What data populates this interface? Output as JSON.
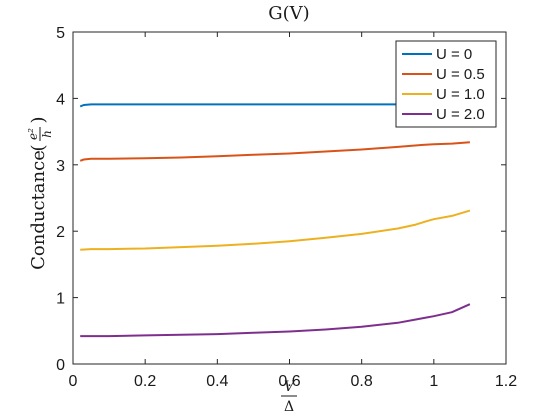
{
  "chart_data": {
    "type": "line",
    "title": "G(V)",
    "xlabel": {
      "numerator": "V",
      "denominator": "Δ"
    },
    "ylabel": {
      "text": "Conductance",
      "numerator": "e²",
      "denominator": "h"
    },
    "xlim": [
      0,
      1.2
    ],
    "ylim": [
      0,
      5
    ],
    "xticks": [
      0,
      0.2,
      0.4,
      0.6,
      0.8,
      1,
      1.2
    ],
    "xtick_labels": [
      "0",
      "0.2",
      "0.4",
      "0.6",
      "0.8",
      "1",
      "1.2"
    ],
    "yticks": [
      0,
      1,
      2,
      3,
      4,
      5
    ],
    "ytick_labels": [
      "0",
      "1",
      "2",
      "3",
      "4",
      "5"
    ],
    "grid": false,
    "legend": "top-right",
    "series": [
      {
        "name": "U = 0",
        "color": "#0072BD",
        "x": [
          0.02,
          0.03,
          0.05,
          0.1,
          0.2,
          0.3,
          0.4,
          0.5,
          0.6,
          0.7,
          0.8,
          0.9,
          1.0,
          1.05,
          1.1
        ],
        "y": [
          3.88,
          3.9,
          3.91,
          3.91,
          3.91,
          3.91,
          3.91,
          3.91,
          3.91,
          3.91,
          3.91,
          3.91,
          3.91,
          3.91,
          3.91
        ]
      },
      {
        "name": "U = 0.5",
        "color": "#D95319",
        "x": [
          0.02,
          0.03,
          0.05,
          0.1,
          0.2,
          0.3,
          0.4,
          0.5,
          0.6,
          0.7,
          0.8,
          0.9,
          0.97,
          1.0,
          1.05,
          1.1
        ],
        "y": [
          3.06,
          3.08,
          3.09,
          3.09,
          3.1,
          3.11,
          3.13,
          3.15,
          3.17,
          3.2,
          3.23,
          3.27,
          3.3,
          3.31,
          3.32,
          3.34
        ]
      },
      {
        "name": "U = 1.0",
        "color": "#EDB120",
        "x": [
          0.02,
          0.05,
          0.1,
          0.2,
          0.3,
          0.4,
          0.5,
          0.6,
          0.7,
          0.8,
          0.9,
          0.95,
          0.98,
          1.0,
          1.05,
          1.1
        ],
        "y": [
          1.72,
          1.73,
          1.73,
          1.74,
          1.76,
          1.78,
          1.81,
          1.85,
          1.9,
          1.96,
          2.04,
          2.1,
          2.15,
          2.18,
          2.23,
          2.31
        ]
      },
      {
        "name": "U = 2.0",
        "color": "#7E2F8E",
        "x": [
          0.02,
          0.05,
          0.1,
          0.2,
          0.3,
          0.4,
          0.5,
          0.6,
          0.7,
          0.8,
          0.9,
          0.95,
          0.98,
          1.0,
          1.05,
          1.1
        ],
        "y": [
          0.42,
          0.42,
          0.42,
          0.43,
          0.44,
          0.45,
          0.47,
          0.49,
          0.52,
          0.56,
          0.62,
          0.67,
          0.7,
          0.72,
          0.78,
          0.9
        ]
      }
    ]
  }
}
